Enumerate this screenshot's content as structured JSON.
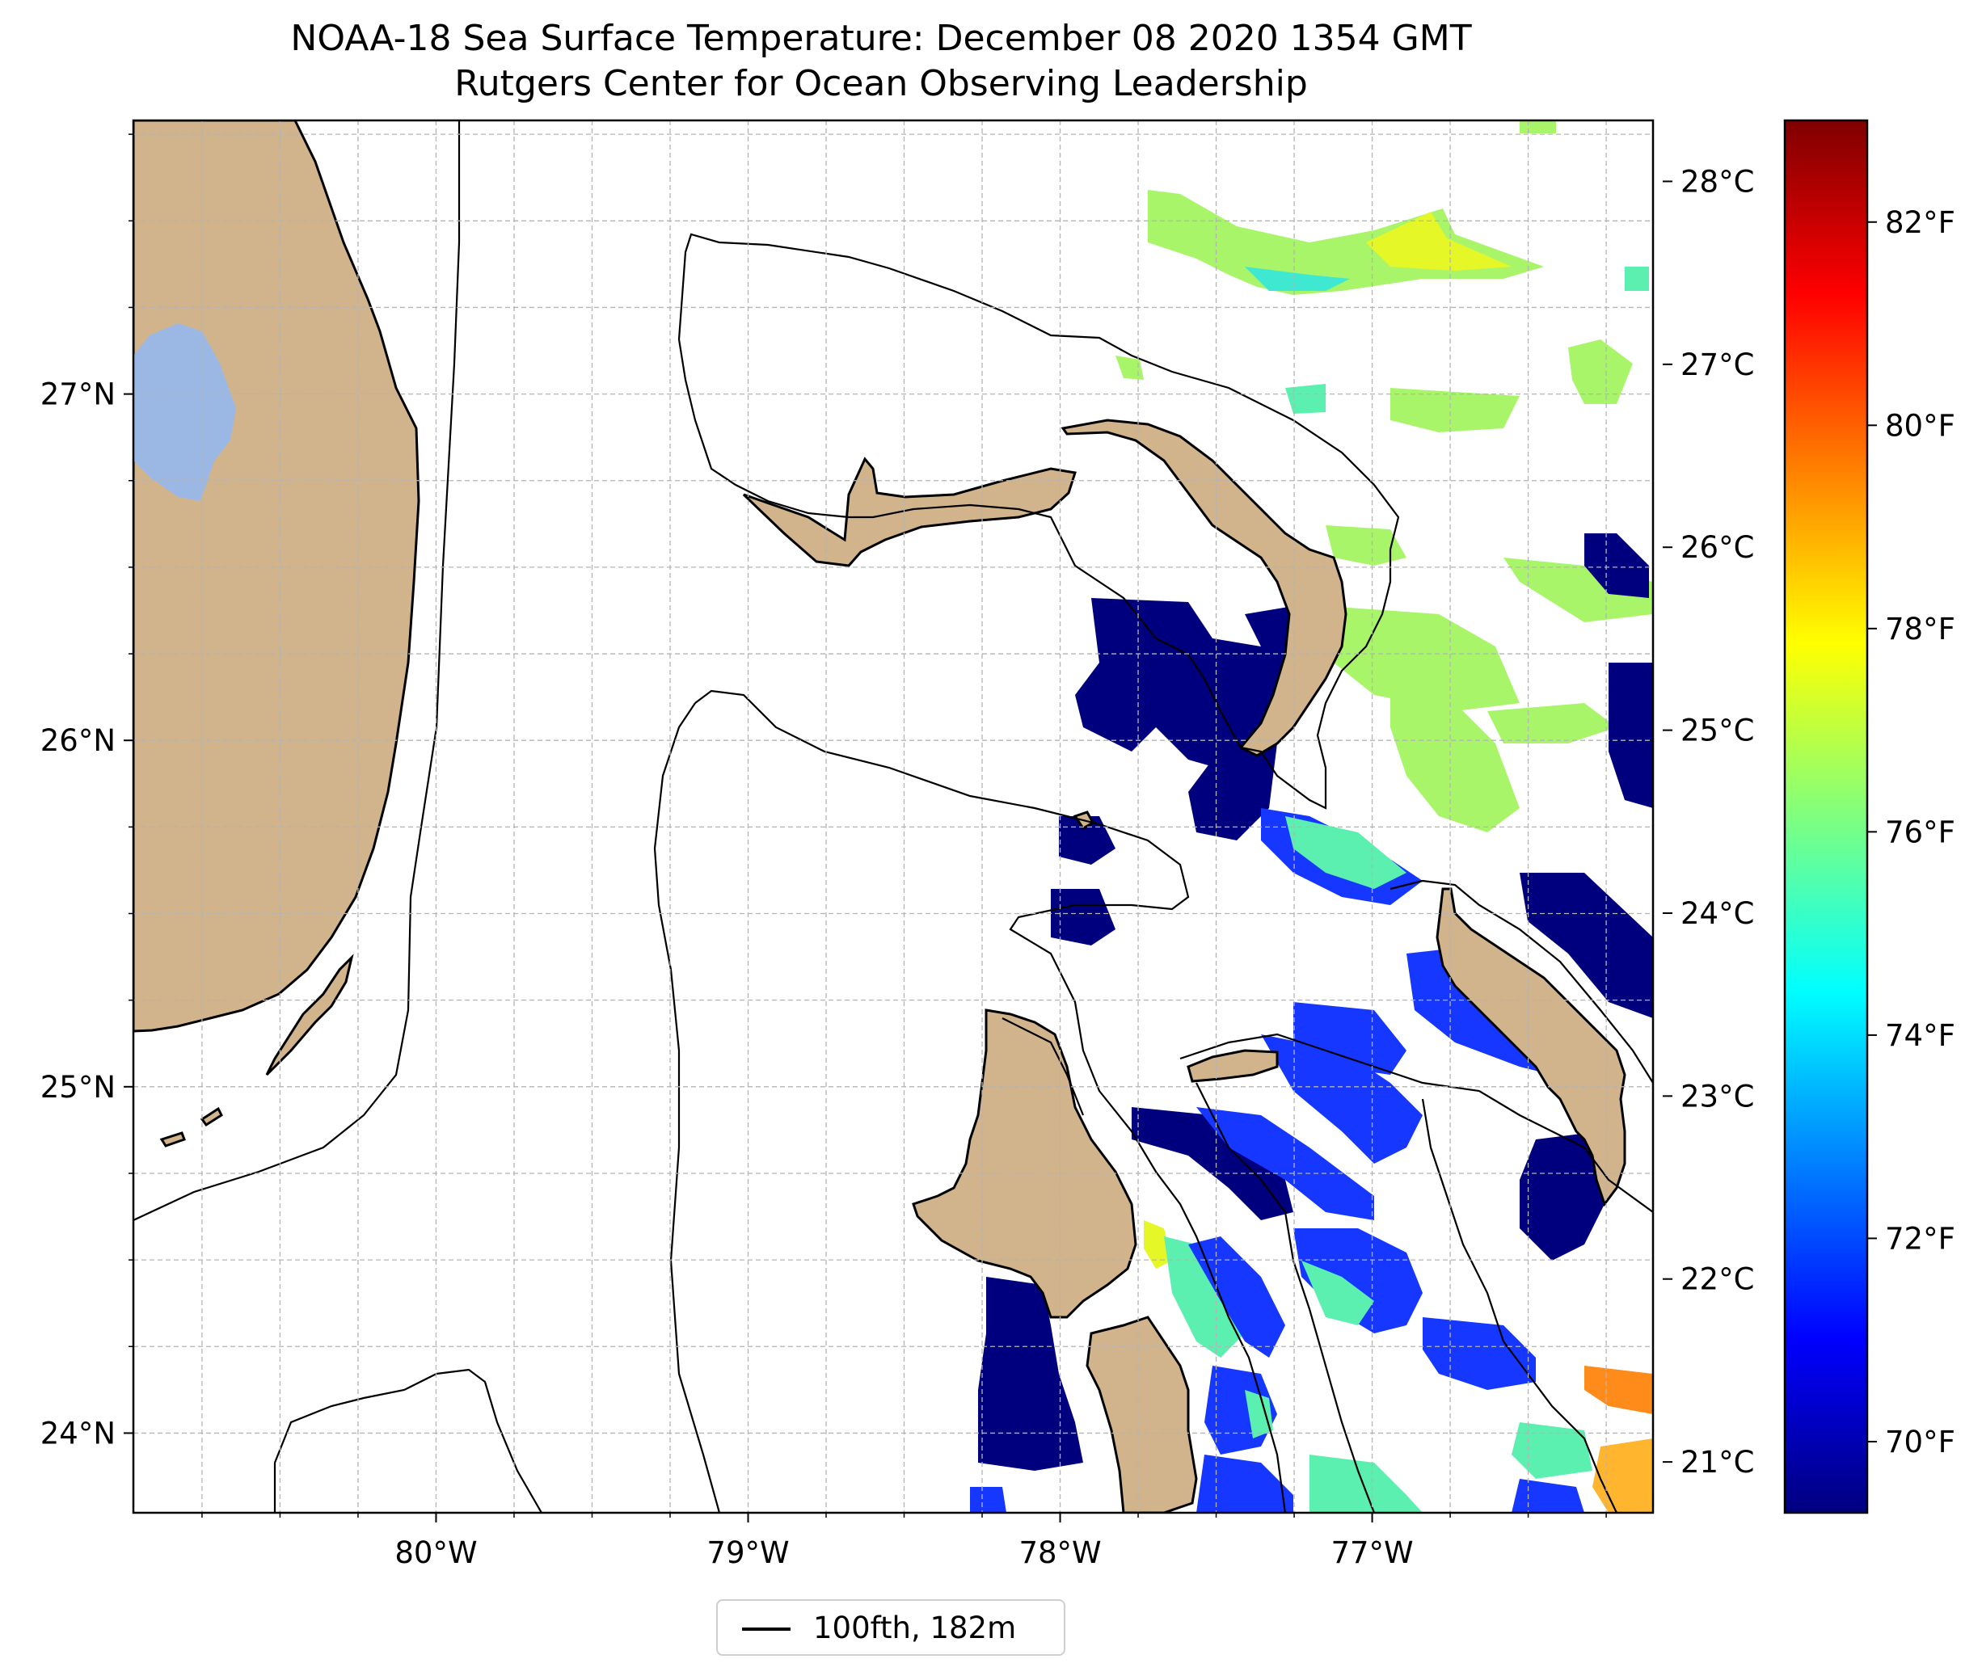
{
  "title": "NOAA-18 Sea Surface Temperature: December 08 2020 1354 GMT",
  "subtitle": "Rutgers Center for Ocean Observing Leadership",
  "map": {
    "lon_range": [
      -80.97,
      -76.1
    ],
    "lat_range": [
      23.77,
      27.79
    ],
    "lon_ticks": [
      {
        "value": -80,
        "label": "80°W"
      },
      {
        "value": -79,
        "label": "79°W"
      },
      {
        "value": -78,
        "label": "78°W"
      },
      {
        "value": -77,
        "label": "77°W"
      }
    ],
    "lat_ticks": [
      {
        "value": 24,
        "label": "24°N"
      },
      {
        "value": 25,
        "label": "25°N"
      },
      {
        "value": 26,
        "label": "26°N"
      },
      {
        "value": 27,
        "label": "27°N"
      }
    ],
    "gridlines": true,
    "land_color": "#d2b48c",
    "lake_color": "#9bb8e4",
    "ocean_color": "#ffffff"
  },
  "celsius_axis": {
    "ticks": [
      {
        "value": 21,
        "label": "21°C"
      },
      {
        "value": 22,
        "label": "22°C"
      },
      {
        "value": 23,
        "label": "23°C"
      },
      {
        "value": 24,
        "label": "24°C"
      },
      {
        "value": 25,
        "label": "25°C"
      },
      {
        "value": 26,
        "label": "26°C"
      },
      {
        "value": 27,
        "label": "27°C"
      },
      {
        "value": 28,
        "label": "28°C"
      }
    ]
  },
  "colorbar": {
    "colormap": "jet",
    "range_f": [
      69.3,
      83.0
    ],
    "ticks": [
      {
        "value": 70,
        "label": "70°F"
      },
      {
        "value": 72,
        "label": "72°F"
      },
      {
        "value": 74,
        "label": "74°F"
      },
      {
        "value": 76,
        "label": "76°F"
      },
      {
        "value": 78,
        "label": "78°F"
      },
      {
        "value": 80,
        "label": "80°F"
      },
      {
        "value": 82,
        "label": "82°F"
      }
    ],
    "stops": [
      "#00007f",
      "#0000ff",
      "#007fff",
      "#00ffff",
      "#7fff7f",
      "#ffff00",
      "#ff7f00",
      "#ff0000",
      "#7f0000"
    ]
  },
  "legend": {
    "label": "100fth, 182m"
  }
}
